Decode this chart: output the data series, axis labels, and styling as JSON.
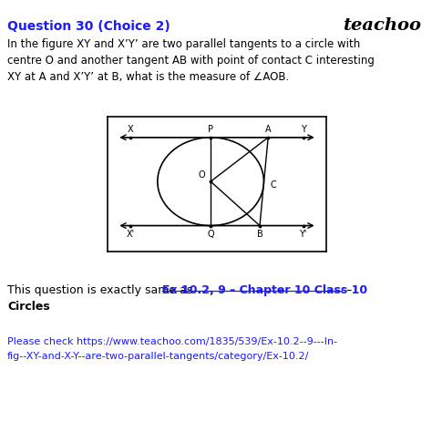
{
  "bg_color": "#ffffff",
  "title_text": "Question 30 (Choice 2)",
  "brand_text": "teachoo",
  "body_line1": "In the figure XY and X’Y’ are two parallel tangents to a circle with",
  "body_line2": "centre O and another tangent AB with point of contact C interesting",
  "body_line3": "XY at A and X’Y’ at B, what is the measure of ∠AOB.",
  "footer_text1": "This question is exactly same as ",
  "footer_link": "Ex 10.2, 9 – Chapter 10 Class 10",
  "footer_dash": " –",
  "footer_bold": "Circles",
  "url_pre": "Please check ",
  "url_line1": "https://www.teachoo.com/1835/539/Ex-10.2--9---In-",
  "url_line2": "fig--XY-and-X-Y--are-two-parallel-tangents/category/Ex-10.2/"
}
